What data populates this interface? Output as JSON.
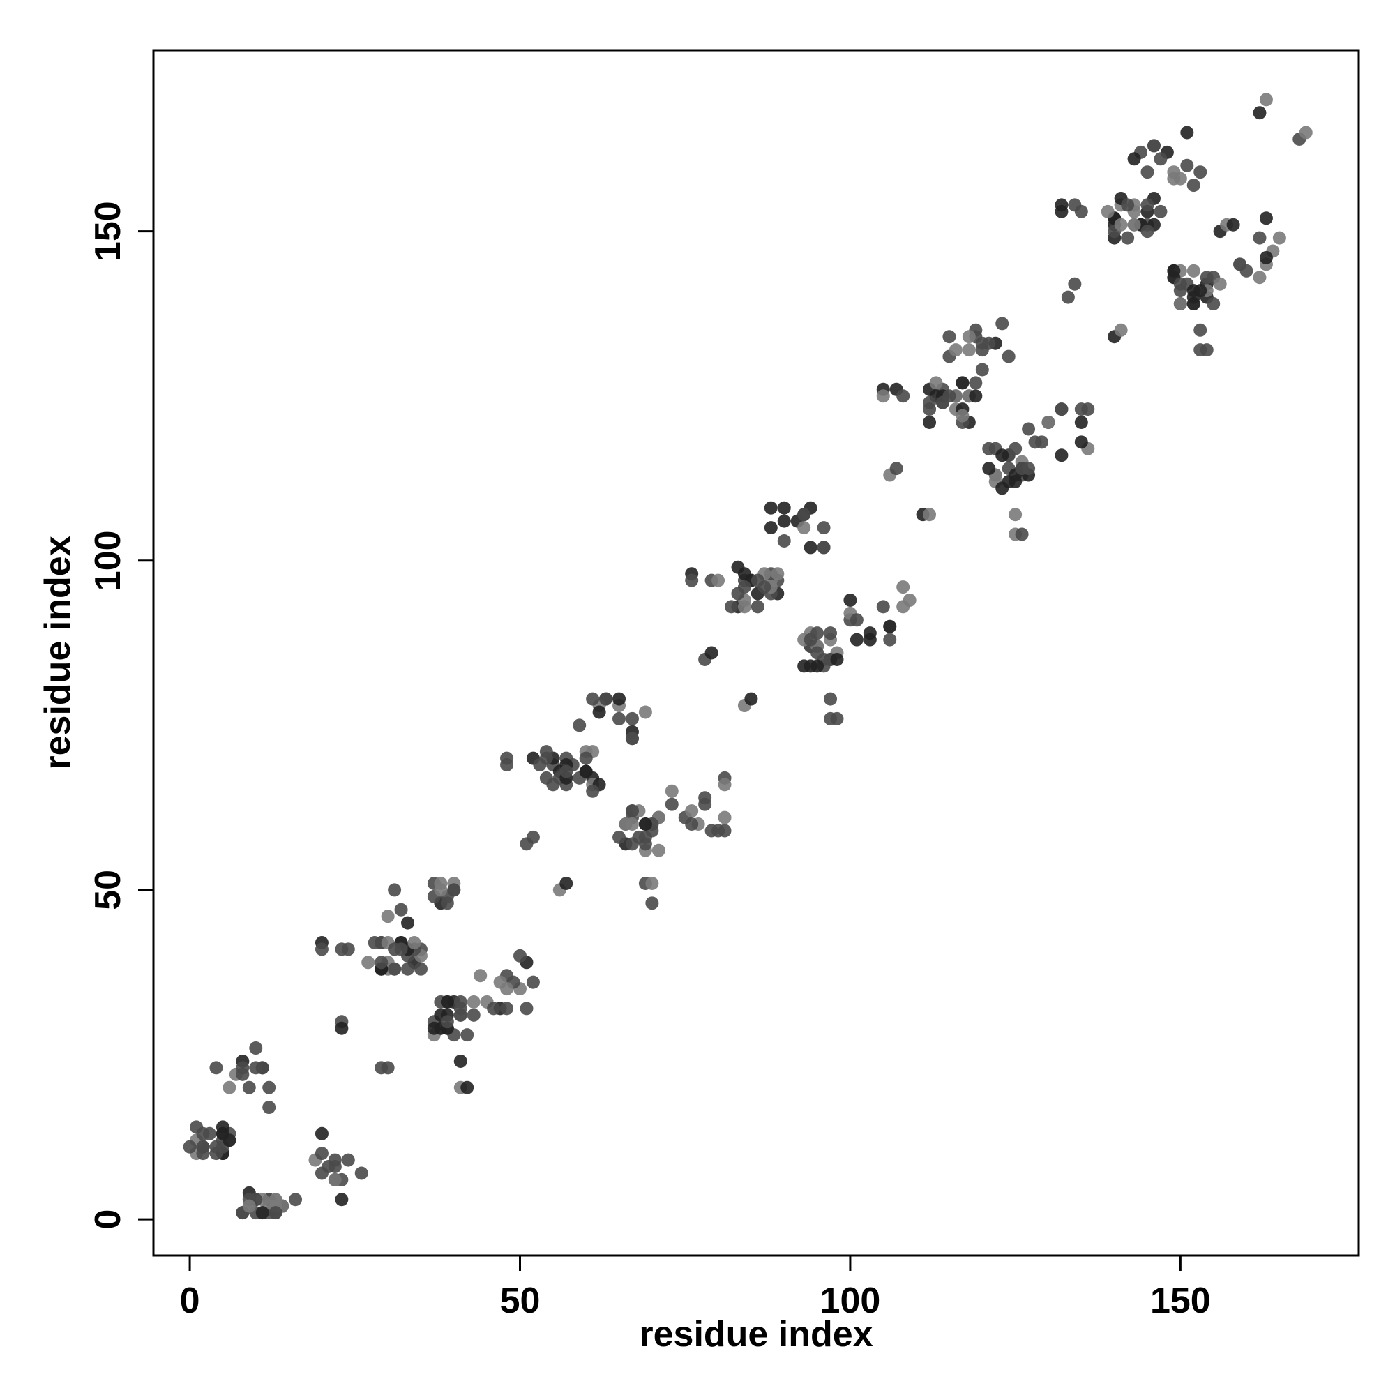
{
  "chart_data": {
    "type": "scatter",
    "title": "",
    "xlabel": "residue index",
    "ylabel": "residue index",
    "xlim": [
      -5.5,
      177
    ],
    "ylim": [
      -5.5,
      177.5
    ],
    "xticks": [
      0,
      50,
      100,
      150
    ],
    "yticks": [
      0,
      50,
      100,
      150
    ],
    "grid": false,
    "legend": "none",
    "colors": {
      "dark": "#222222",
      "mid": "#4a4a4a",
      "light": "#7a7a7a"
    },
    "clusters": [
      {
        "cx": 3,
        "cy": 12,
        "w": 3,
        "h": 3,
        "n": 22
      },
      {
        "cx": 7,
        "cy": 22,
        "w": 5,
        "h": 4,
        "n": 12
      },
      {
        "cx": 11,
        "cy": 2,
        "w": 3,
        "h": 2,
        "n": 18
      },
      {
        "cx": 15,
        "cy": 3,
        "w": 3,
        "h": 1,
        "n": 6
      },
      {
        "cx": 21,
        "cy": 8,
        "w": 3,
        "h": 5,
        "n": 12
      },
      {
        "cx": 31,
        "cy": 40,
        "w": 4,
        "h": 2.5,
        "n": 25
      },
      {
        "cx": 35,
        "cy": 49,
        "w": 5,
        "h": 4,
        "n": 14
      },
      {
        "cx": 40,
        "cy": 31,
        "w": 3,
        "h": 3,
        "n": 22
      },
      {
        "cx": 48,
        "cy": 36,
        "w": 4,
        "h": 5,
        "n": 14
      },
      {
        "cx": 58,
        "cy": 68,
        "w": 4,
        "h": 3,
        "n": 24
      },
      {
        "cx": 64,
        "cy": 76,
        "w": 5,
        "h": 4,
        "n": 14
      },
      {
        "cx": 68,
        "cy": 59,
        "w": 3,
        "h": 3,
        "n": 22
      },
      {
        "cx": 77,
        "cy": 63,
        "w": 5,
        "h": 5,
        "n": 14
      },
      {
        "cx": 86,
        "cy": 96,
        "w": 4,
        "h": 3,
        "n": 24
      },
      {
        "cx": 92,
        "cy": 105,
        "w": 5,
        "h": 4,
        "n": 14
      },
      {
        "cx": 96,
        "cy": 87,
        "w": 3,
        "h": 3,
        "n": 22
      },
      {
        "cx": 105,
        "cy": 91,
        "w": 5,
        "h": 5,
        "n": 14
      },
      {
        "cx": 115,
        "cy": 124,
        "w": 4,
        "h": 3,
        "n": 24
      },
      {
        "cx": 119,
        "cy": 133,
        "w": 5,
        "h": 4,
        "n": 14
      },
      {
        "cx": 124,
        "cy": 114,
        "w": 3,
        "h": 3,
        "n": 22
      },
      {
        "cx": 132,
        "cy": 119,
        "w": 5,
        "h": 5,
        "n": 14
      },
      {
        "cx": 143,
        "cy": 152,
        "w": 4,
        "h": 3,
        "n": 24
      },
      {
        "cx": 148,
        "cy": 161,
        "w": 5,
        "h": 4,
        "n": 14
      },
      {
        "cx": 152,
        "cy": 142,
        "w": 3,
        "h": 3,
        "n": 22
      },
      {
        "cx": 160,
        "cy": 147,
        "w": 5,
        "h": 5,
        "n": 14
      }
    ],
    "points": [
      [
        20,
        42
      ],
      [
        20,
        41
      ],
      [
        23,
        41
      ],
      [
        24,
        41
      ],
      [
        23,
        30
      ],
      [
        23,
        29
      ],
      [
        29,
        23
      ],
      [
        30,
        23
      ],
      [
        48,
        70
      ],
      [
        48,
        69
      ],
      [
        52,
        70
      ],
      [
        53,
        69
      ],
      [
        51,
        57
      ],
      [
        52,
        58
      ],
      [
        56,
        50
      ],
      [
        57,
        51
      ],
      [
        76,
        98
      ],
      [
        76,
        97
      ],
      [
        79,
        97
      ],
      [
        80,
        97
      ],
      [
        78,
        85
      ],
      [
        79,
        86
      ],
      [
        84,
        78
      ],
      [
        85,
        79
      ],
      [
        105,
        126
      ],
      [
        105,
        125
      ],
      [
        107,
        126
      ],
      [
        108,
        125
      ],
      [
        106,
        113
      ],
      [
        107,
        114
      ],
      [
        111,
        107
      ],
      [
        112,
        107
      ],
      [
        132,
        154
      ],
      [
        132,
        153
      ],
      [
        134,
        154
      ],
      [
        135,
        153
      ],
      [
        133,
        140
      ],
      [
        134,
        142
      ],
      [
        140,
        134
      ],
      [
        141,
        135
      ],
      [
        162,
        168
      ],
      [
        163,
        170
      ],
      [
        168,
        164
      ],
      [
        169,
        165
      ],
      [
        12,
        17
      ],
      [
        26,
        7
      ],
      [
        11,
        1
      ],
      [
        13,
        1
      ],
      [
        41,
        24
      ],
      [
        41,
        20
      ],
      [
        42,
        20
      ],
      [
        69,
        51
      ],
      [
        70,
        48
      ],
      [
        70,
        51
      ],
      [
        97,
        79
      ],
      [
        98,
        76
      ],
      [
        97,
        76
      ],
      [
        125,
        107
      ],
      [
        125,
        104
      ],
      [
        126,
        104
      ],
      [
        153,
        135
      ],
      [
        153,
        132
      ],
      [
        154,
        132
      ]
    ]
  }
}
